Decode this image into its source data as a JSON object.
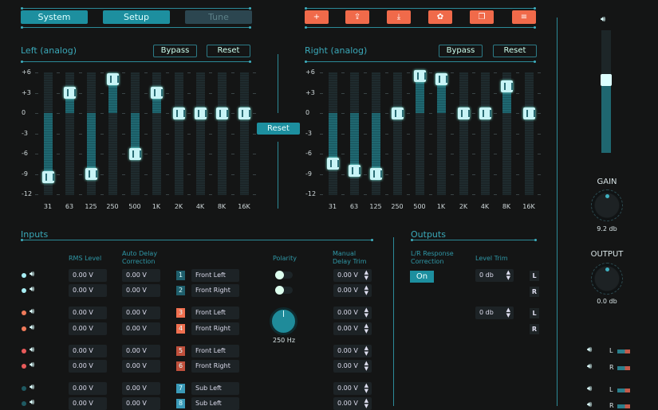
{
  "tabs": [
    {
      "label": "System",
      "active": true
    },
    {
      "label": "Setup",
      "active": true
    },
    {
      "label": "Tune",
      "active": false
    }
  ],
  "toolbar": [
    {
      "icon": "plus-icon",
      "glyph": "+"
    },
    {
      "icon": "upload-icon",
      "glyph": "⇪"
    },
    {
      "icon": "download-icon",
      "glyph": "⤓"
    },
    {
      "icon": "gear-icon",
      "glyph": "✿"
    },
    {
      "icon": "copy-icon",
      "glyph": "❐"
    },
    {
      "icon": "menu-icon",
      "glyph": "≡"
    }
  ],
  "eq": {
    "y_ticks": [
      "+6",
      "+3",
      "0",
      "-3",
      "-6",
      "-9",
      "-12"
    ],
    "bands": [
      "31",
      "63",
      "125",
      "250",
      "500",
      "1K",
      "2K",
      "4K",
      "8K",
      "16K"
    ],
    "reset_label": "Reset",
    "left": {
      "title": "Left (analog)",
      "bypass": "Bypass",
      "reset": "Reset",
      "gains_db": [
        -9.5,
        3,
        -9,
        5,
        -6,
        3,
        0,
        0,
        0,
        0
      ]
    },
    "right": {
      "title": "Right (analog)",
      "bypass": "Bypass",
      "reset": "Reset",
      "gains_db": [
        -7.5,
        -8.5,
        -9,
        0,
        5.5,
        5,
        0,
        0,
        4,
        0
      ]
    }
  },
  "master": {
    "volume_level": 0.6,
    "gain_label": "GAIN",
    "gain_value": "9.2 db",
    "output_label": "OUTPUT",
    "output_value": "0.0 db"
  },
  "inputs": {
    "title": "Inputs",
    "headers": {
      "rms": "RMS Level",
      "auto_delay": "Auto Delay Correction",
      "polarity": "Polarity",
      "manual_trim": "Manual Delay Trim"
    },
    "crossover": "250 Hz",
    "rows": [
      {
        "dot": "#a8eef4",
        "rms": "0.00 V",
        "delay": "0.00 V",
        "num": "1",
        "num_color": "#1f5f6c",
        "name": "Front Left",
        "trim": "0.00 V"
      },
      {
        "dot": "#a8eef4",
        "rms": "0.00 V",
        "delay": "0.00 V",
        "num": "2",
        "num_color": "#1f5f6c",
        "name": "Front Right",
        "trim": "0.00 V"
      },
      {
        "dot": "#f07a5a",
        "rms": "0.00 V",
        "delay": "0.00 V",
        "num": "3",
        "num_color": "#f07050",
        "name": "Front Left",
        "trim": "0.00 V"
      },
      {
        "dot": "#f07a5a",
        "rms": "0.00 V",
        "delay": "0.00 V",
        "num": "4",
        "num_color": "#f07050",
        "name": "Front Right",
        "trim": "0.00 V"
      },
      {
        "dot": "#e85a5a",
        "rms": "0.00 V",
        "delay": "0.00 V",
        "num": "5",
        "num_color": "#c0503c",
        "name": "Front Left",
        "trim": "0.00 V"
      },
      {
        "dot": "#e85a5a",
        "rms": "0.00 V",
        "delay": "0.00 V",
        "num": "6",
        "num_color": "#c0503c",
        "name": "Front Right",
        "trim": "0.00 V"
      },
      {
        "dot": "#1f5a62",
        "rms": "0.00 V",
        "delay": "0.00 V",
        "num": "7",
        "num_color": "#3a9ab8",
        "name": "Sub Left",
        "trim": "0.00 V"
      },
      {
        "dot": "#1f5a62",
        "rms": "0.00 V",
        "delay": "0.00 V",
        "num": "8",
        "num_color": "#3a9ab8",
        "name": "Sub Left",
        "trim": "0.00 V"
      }
    ]
  },
  "outputs": {
    "title": "Outputs",
    "lr_label": "L/R Response Correction",
    "on_label": "On",
    "level_trim_label": "Level Trim",
    "trims": [
      {
        "value": "0 db",
        "l": "L",
        "r": "R"
      },
      {
        "value": "0 db",
        "l": "L",
        "r": "R"
      }
    ]
  },
  "meters": [
    {
      "label": "L"
    },
    {
      "label": "R"
    },
    {
      "label": "L"
    },
    {
      "label": "R"
    }
  ],
  "colors": {
    "accent": "#1d8f9f",
    "orange": "#f06a4a",
    "bg": "#141515"
  }
}
